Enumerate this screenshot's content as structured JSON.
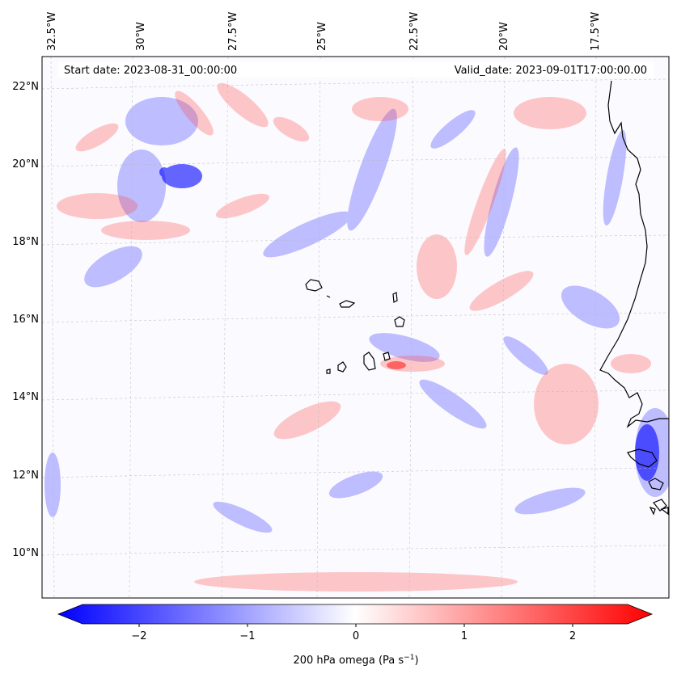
{
  "header": {
    "start_date": "Start date: 2023-08-31_00:00:00",
    "valid_date": "Valid_date: 2023-09-01T17:00:00.00"
  },
  "longitude_labels": [
    "32.5°W",
    "30°W",
    "27.5°W",
    "25°W",
    "22.5°W",
    "20°W",
    "17.5°W"
  ],
  "latitude_labels": [
    "22°N",
    "20°N",
    "18°N",
    "16°N",
    "14°N",
    "12°N",
    "10°N"
  ],
  "colorbar": {
    "ticks": [
      "−2",
      "−1",
      "0",
      "1",
      "2"
    ],
    "label_prefix": "200 hPa omega (Pa s",
    "label_sup": "−1",
    "label_suffix": ")",
    "range": [
      -2.5,
      2.5
    ],
    "colors": {
      "min": "#0000ff",
      "mid": "#ffffff",
      "max": "#ff0000"
    }
  }
}
